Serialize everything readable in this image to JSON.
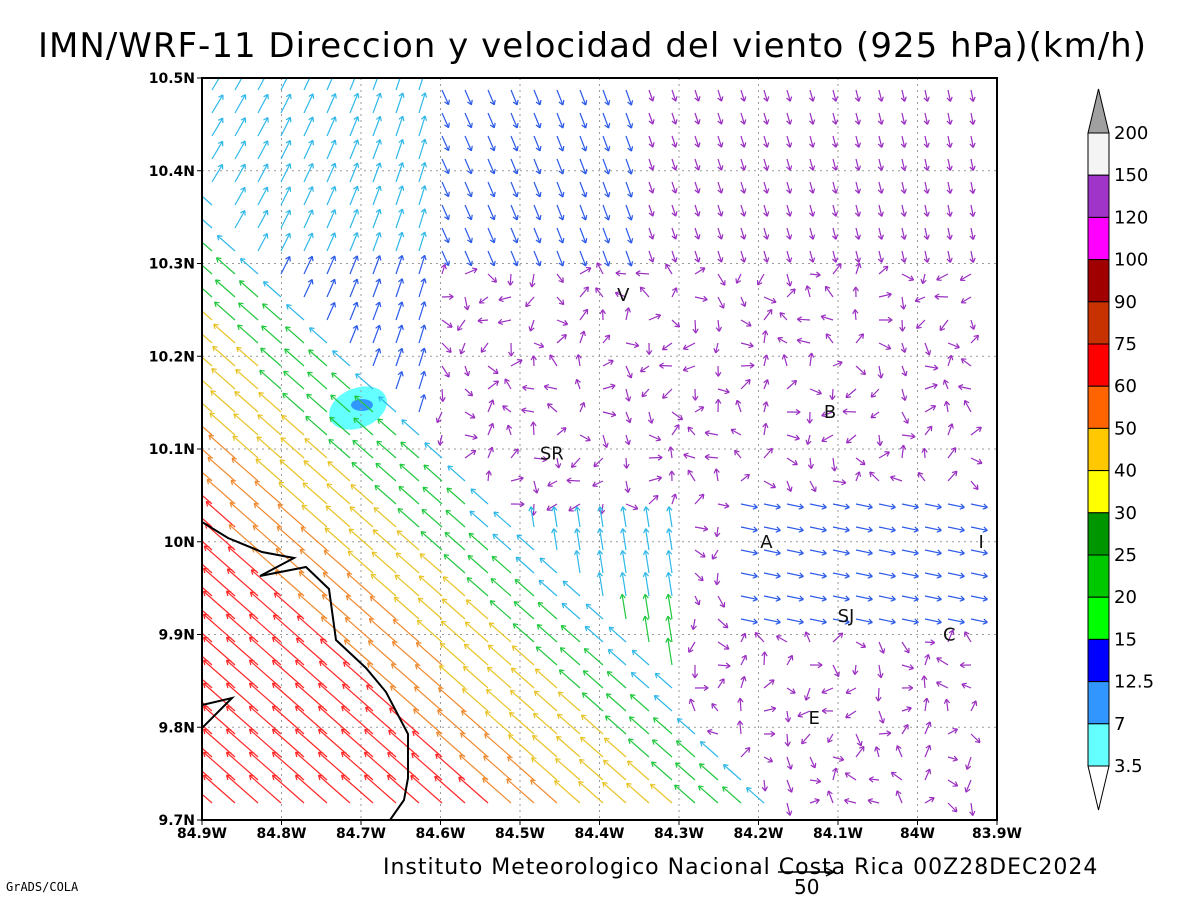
{
  "title": "IMN/WRF-11 Direccion y velocidad del viento (925 hPa)(km/h)",
  "credit": "Instituto Meteorologico Nacional Costa Rica 00Z28DEC2024",
  "software_tag": "GrADS/COLA",
  "reference_vector_label": "50",
  "axes": {
    "lon_ticks": [
      "84.9W",
      "84.8W",
      "84.7W",
      "84.6W",
      "84.5W",
      "84.4W",
      "84.3W",
      "84.2W",
      "84.1W",
      "84W",
      "83.9W"
    ],
    "lat_ticks": [
      "10.5N",
      "10.4N",
      "10.3N",
      "10.2N",
      "10.1N",
      "10N",
      "9.9N",
      "9.8N",
      "9.7N"
    ],
    "lon_range": [
      -84.9,
      -83.9
    ],
    "lat_range": [
      9.7,
      10.5
    ],
    "grid": "dotted"
  },
  "colorbar": {
    "labels": [
      "200",
      "150",
      "120",
      "100",
      "90",
      "75",
      "60",
      "50",
      "40",
      "30",
      "25",
      "20",
      "15",
      "12.5",
      "7",
      "3.5"
    ],
    "colors": [
      "#a0a0a0",
      "#f4f4f4",
      "#a034c8",
      "#ff00ff",
      "#a00000",
      "#c83200",
      "#ff0000",
      "#ff6400",
      "#ffc800",
      "#ffff00",
      "#009600",
      "#00c800",
      "#00ff00",
      "#0000ff",
      "#3296ff",
      "#64ffff"
    ]
  },
  "cities": [
    {
      "label": "V",
      "lon": -84.37,
      "lat": 10.266
    },
    {
      "label": "B",
      "lon": -84.11,
      "lat": 10.14
    },
    {
      "label": "SR",
      "lon": -84.46,
      "lat": 10.095
    },
    {
      "label": "A",
      "lon": -84.19,
      "lat": 10.0
    },
    {
      "label": "I",
      "lon": -83.92,
      "lat": 10.0
    },
    {
      "label": "SJ",
      "lon": -84.09,
      "lat": 9.92
    },
    {
      "label": "C",
      "lon": -83.96,
      "lat": 9.9
    },
    {
      "label": "E",
      "lon": -84.13,
      "lat": 9.81
    }
  ],
  "wind_colors": {
    "calm": "#9a2fc0",
    "light": "#2c5ae8",
    "moderate": "#2fb8e8",
    "fresh": "#22c840",
    "strong": "#e8c428",
    "very_strong": "#f08a30",
    "gale": "#ff2828"
  }
}
